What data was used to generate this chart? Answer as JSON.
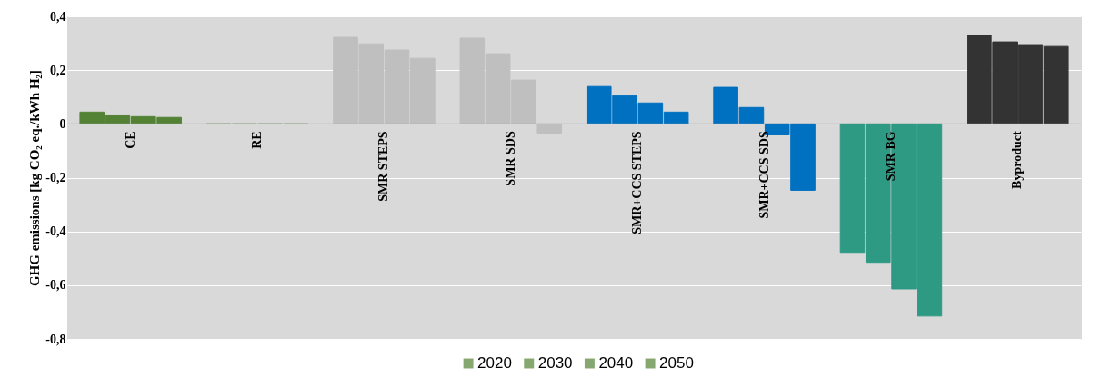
{
  "chart_data": {
    "type": "bar",
    "ylabel": "GHG emissions [kg CO₂ eq./kWh H₂]",
    "categories": [
      "CE",
      "RE",
      "SMR STEPS",
      "SMR SDS",
      "SMR+CCS STEPS",
      "SMR+CCS SDS",
      "SMR BG",
      "Byproduct"
    ],
    "series": [
      {
        "name": "2020",
        "color": "#548235",
        "colors": [
          "#548235",
          "#548235",
          "#bfbfbf",
          "#bfbfbf",
          "#0070c0",
          "#0070c0",
          "#2e9a84",
          "#333333"
        ],
        "values": [
          0.044,
          0,
          0.322,
          0.319,
          0.139,
          0.136,
          -0.478,
          0.329
        ]
      },
      {
        "name": "2030",
        "color": "#548235",
        "colors": [
          "#548235",
          "#548235",
          "#bfbfbf",
          "#bfbfbf",
          "#0070c0",
          "#0070c0",
          "#2e9a84",
          "#333333"
        ],
        "values": [
          0.03,
          0,
          0.298,
          0.261,
          0.105,
          0.061,
          -0.515,
          0.305
        ]
      },
      {
        "name": "2040",
        "color": "#548235",
        "colors": [
          "#548235",
          "#548235",
          "#bfbfbf",
          "#bfbfbf",
          "#0070c0",
          "#0070c0",
          "#2e9a84",
          "#333333"
        ],
        "values": [
          0.027,
          0,
          0.275,
          0.163,
          0.078,
          -0.041,
          -0.614,
          0.295
        ]
      },
      {
        "name": "2050",
        "color": "#548235",
        "colors": [
          "#548235",
          "#548235",
          "#bfbfbf",
          "#bfbfbf",
          "#0070c0",
          "#0070c0",
          "#2e9a84",
          "#333333"
        ],
        "values": [
          0.024,
          0,
          0.244,
          -0.034,
          0.044,
          -0.247,
          -0.715,
          0.288
        ]
      }
    ],
    "ylim": [
      -0.8,
      0.4
    ],
    "yticks": [
      {
        "value": -0.8,
        "label": "-0,8"
      },
      {
        "value": -0.6,
        "label": "-0,6"
      },
      {
        "value": -0.4,
        "label": "-0,4"
      },
      {
        "value": -0.2,
        "label": "-0,2"
      },
      0,
      {
        "value": 0.2,
        "label": "0,2"
      },
      {
        "value": 0.4,
        "label": "0,4"
      }
    ],
    "grid": "y",
    "legend": "bottom"
  }
}
